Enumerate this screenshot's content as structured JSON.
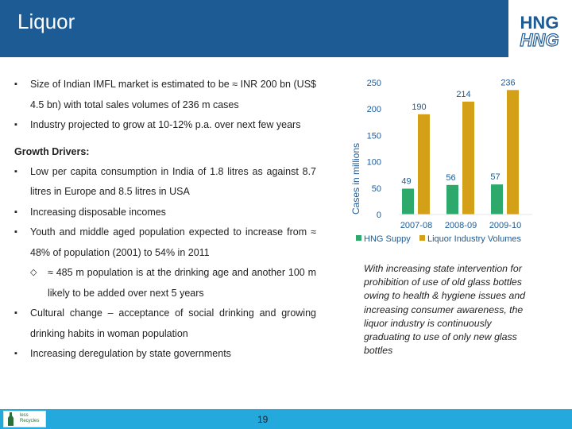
{
  "header": {
    "title": "Liquor",
    "logo_text_top": "HNG",
    "logo_text_bottom": "HNG",
    "background_color": "#1d5b95"
  },
  "bullets_top": [
    "Size of Indian IMFL market is estimated to be ≈ INR 200 bn (US$ 4.5 bn) with total sales volumes of 236 m cases",
    "Industry projected to grow at 10-12% p.a. over next few years"
  ],
  "growth_drivers": {
    "heading": "Growth Drivers:",
    "items": [
      "Low per capita consumption in India of 1.8 litres as against 8.7 litres in Europe and 8.5 litres in USA",
      "Increasing disposable incomes",
      "Youth and middle aged population expected to increase from ≈ 48% of population (2001) to 54% in 2011"
    ],
    "sub_item": "≈ 485 m population is at the drinking age and another 100 m likely to be added over next 5 years",
    "items_after": [
      "Cultural change – acceptance of social drinking and growing drinking habits in woman population",
      "Increasing deregulation by state governments"
    ]
  },
  "chart_data": {
    "type": "bar",
    "categories": [
      "2007-08",
      "2008-09",
      "2009-10"
    ],
    "series": [
      {
        "name": "HNG Suppy",
        "values": [
          49,
          56,
          57
        ],
        "color": "#2daa6b"
      },
      {
        "name": "Liquor Industry Volumes",
        "values": [
          190,
          214,
          236
        ],
        "color": "#d4a017"
      }
    ],
    "ylabel": "Cases in millions",
    "ylim": [
      0,
      250
    ],
    "yticks": [
      0,
      50,
      100,
      150,
      200,
      250
    ],
    "legend_position": "bottom",
    "grid": false
  },
  "caption": "With increasing state intervention for prohibition of use of old glass bottles owing to health & hygiene issues and increasing consumer awareness, the liquor industry is continuously graduating to use of only new glass bottles",
  "footer": {
    "page_number": "19",
    "badge_line1": "less",
    "badge_line2": "Recycles",
    "background_color": "#24a9dc"
  }
}
